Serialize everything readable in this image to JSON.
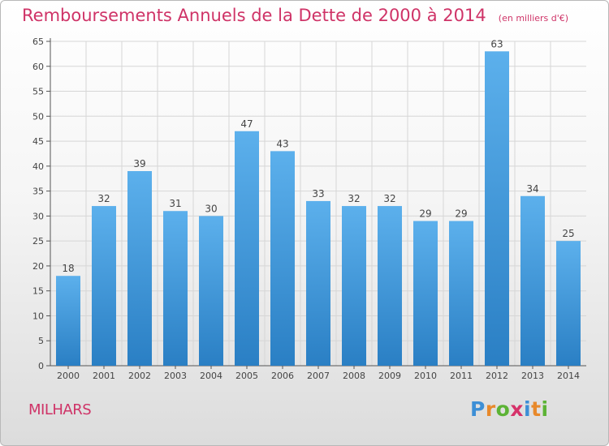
{
  "title": "Remboursements Annuels de la Dette de 2000 à 2014",
  "subtitle": "(en milliers d'€)",
  "commune": "MILHARS",
  "logo": {
    "text": "Proxiti",
    "colors": [
      "#3d8fd6",
      "#e8892b",
      "#5cb335",
      "#d6326a",
      "#3d8fd6",
      "#e8892b",
      "#5cb335"
    ]
  },
  "colors": {
    "bar_top": "#5cb0ec",
    "bar_bottom": "#2a7fc4",
    "title": "#cf3367",
    "grid": "#d6d6d6"
  },
  "chart_data": {
    "type": "bar",
    "categories": [
      "2000",
      "2001",
      "2002",
      "2003",
      "2004",
      "2005",
      "2006",
      "2007",
      "2008",
      "2009",
      "2010",
      "2011",
      "2012",
      "2013",
      "2014"
    ],
    "values": [
      18,
      32,
      39,
      31,
      30,
      47,
      43,
      33,
      32,
      32,
      29,
      29,
      63,
      34,
      25
    ],
    "yticks": [
      0,
      5,
      10,
      15,
      20,
      25,
      30,
      35,
      40,
      45,
      50,
      55,
      60,
      65
    ],
    "ylim": [
      0,
      65
    ],
    "grid": true,
    "data_labels": true
  }
}
